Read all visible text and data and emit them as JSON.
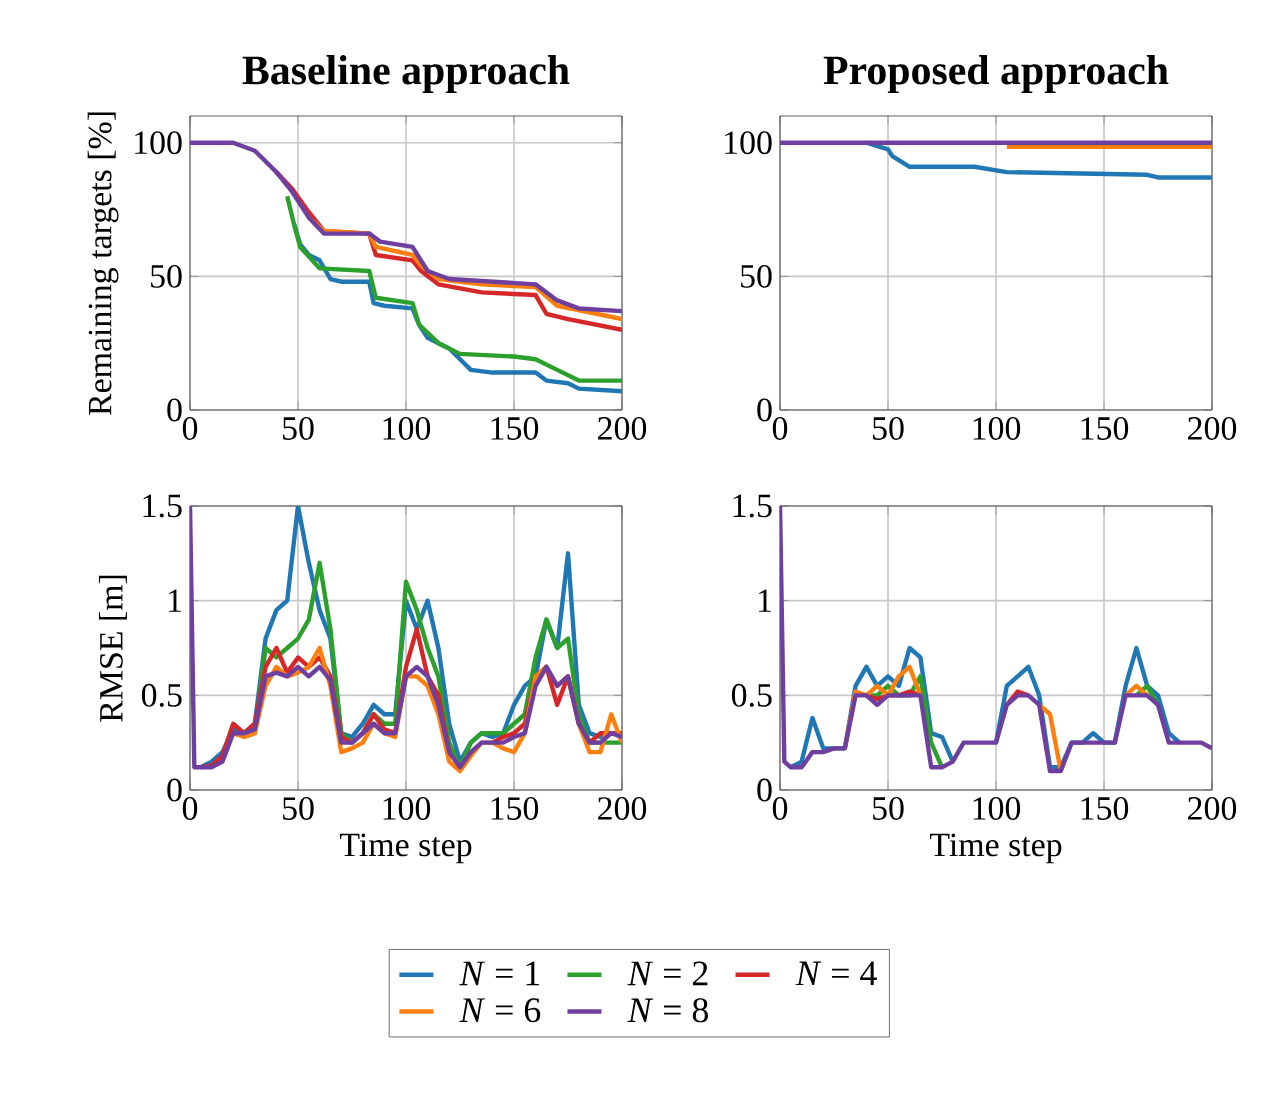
{
  "chart_data": [
    {
      "type": "line",
      "title": "Baseline approach",
      "ylabel": "Remaining targets [%]",
      "xlim": [
        0,
        200
      ],
      "ylim": [
        0,
        110
      ],
      "xticks": [
        0,
        50,
        100,
        150,
        200
      ],
      "yticks": [
        0,
        50,
        100
      ],
      "grid": true,
      "series": [
        {
          "color": "#1f77b4",
          "x": [
            48,
            51,
            55,
            60,
            65,
            70,
            83,
            85,
            90,
            103,
            106,
            110,
            115,
            120,
            125,
            130,
            140,
            160,
            165,
            175,
            180,
            200
          ],
          "values": [
            70,
            62,
            58,
            56,
            49,
            48,
            48,
            40,
            39,
            38,
            32,
            27,
            25,
            23,
            19,
            15,
            14,
            14,
            11,
            10,
            8,
            7
          ]
        },
        {
          "color": "#2ca02c",
          "x": [
            45,
            48,
            51,
            60,
            83,
            86,
            103,
            106,
            115,
            125,
            150,
            160,
            170,
            180,
            200
          ],
          "values": [
            80,
            70,
            61,
            53,
            52,
            42,
            40,
            32,
            25,
            21,
            20,
            19,
            15,
            11,
            11
          ]
        },
        {
          "color": "#d62728",
          "x": [
            40,
            47,
            55,
            62,
            83,
            86,
            103,
            107,
            115,
            135,
            160,
            165,
            175,
            200
          ],
          "values": [
            89,
            83,
            74,
            67,
            66,
            58,
            56,
            52,
            47,
            44,
            43,
            36,
            34,
            30
          ]
        },
        {
          "color": "#ff7f0e",
          "x": [
            55,
            62,
            83,
            86,
            103,
            107,
            115,
            135,
            160,
            170,
            200
          ],
          "values": [
            72,
            67,
            66,
            61,
            58,
            54,
            49,
            47,
            46,
            39,
            34
          ]
        },
        {
          "color": "#6f3f9f",
          "x": [
            0,
            20,
            30,
            40,
            47,
            55,
            62,
            83,
            88,
            103,
            110,
            120,
            160,
            170,
            180,
            200
          ],
          "values": [
            100,
            100,
            97,
            89,
            82,
            72,
            66,
            66,
            63,
            61,
            52,
            49,
            47,
            41,
            38,
            37
          ]
        }
      ]
    },
    {
      "type": "line",
      "title": "Proposed approach",
      "xlim": [
        0,
        200
      ],
      "ylim": [
        0,
        110
      ],
      "xticks": [
        0,
        50,
        100,
        150,
        200
      ],
      "yticks": [
        0,
        50,
        100
      ],
      "grid": true,
      "series": [
        {
          "color": "#1f77b4",
          "x": [
            40,
            50,
            52,
            60,
            90,
            105,
            170,
            175,
            200
          ],
          "values": [
            100,
            97.5,
            95,
            91,
            91,
            89,
            88,
            87,
            87
          ]
        },
        {
          "color": "#ff7f0e",
          "x": [
            105,
            200
          ],
          "values": [
            98.5,
            98.5
          ]
        },
        {
          "color": "#6f3f9f",
          "x": [
            0,
            200
          ],
          "values": [
            100,
            100
          ]
        }
      ]
    },
    {
      "type": "line",
      "ylabel": "RMSE [m]",
      "xlabel": "Time step",
      "xlim": [
        0,
        200
      ],
      "ylim": [
        0,
        1.5
      ],
      "xticks": [
        0,
        50,
        100,
        150,
        200
      ],
      "yticks": [
        0,
        0.5,
        1,
        1.5
      ],
      "grid": true,
      "legend": "bottom",
      "x": [
        0,
        2,
        5,
        10,
        15,
        20,
        25,
        30,
        35,
        40,
        45,
        50,
        55,
        60,
        65,
        70,
        75,
        80,
        85,
        90,
        95,
        100,
        105,
        110,
        115,
        120,
        125,
        130,
        135,
        140,
        145,
        150,
        155,
        160,
        165,
        170,
        175,
        180,
        185,
        190,
        195,
        200
      ],
      "series": [
        {
          "name": "*N* = 1",
          "color": "#1f77b4",
          "values": [
            null,
            null,
            0.12,
            0.15,
            0.2,
            0.32,
            0.3,
            0.35,
            0.8,
            0.95,
            1.0,
            1.5,
            1.2,
            0.95,
            0.8,
            0.3,
            0.28,
            0.35,
            0.45,
            0.4,
            0.4,
            1.0,
            0.85,
            1.0,
            0.75,
            0.35,
            0.15,
            0.25,
            0.3,
            0.28,
            0.3,
            0.45,
            0.55,
            0.6,
            0.9,
            0.75,
            1.25,
            0.45,
            0.3,
            0.28,
            0.3,
            0.3
          ]
        },
        {
          "name": "*N* = 2",
          "color": "#2ca02c",
          "values": [
            null,
            null,
            null,
            null,
            null,
            null,
            0.28,
            0.3,
            0.75,
            0.7,
            0.75,
            0.8,
            0.9,
            1.2,
            0.85,
            0.3,
            0.25,
            0.3,
            0.4,
            0.35,
            0.35,
            1.1,
            0.95,
            0.75,
            0.6,
            0.25,
            0.12,
            0.25,
            0.3,
            0.3,
            0.3,
            0.35,
            0.4,
            0.7,
            0.9,
            0.75,
            0.8,
            0.4,
            0.25,
            0.25,
            0.25,
            0.25
          ]
        },
        {
          "name": "*N* = 4",
          "color": "#d62728",
          "values": [
            null,
            null,
            0.12,
            0.13,
            0.18,
            0.35,
            0.3,
            0.35,
            0.65,
            0.75,
            0.62,
            0.7,
            0.65,
            0.7,
            0.6,
            0.28,
            0.25,
            0.3,
            0.4,
            0.32,
            0.3,
            0.65,
            0.85,
            0.6,
            0.5,
            0.2,
            null,
            null,
            null,
            0.25,
            0.28,
            0.3,
            0.35,
            0.6,
            0.65,
            0.45,
            0.6,
            0.35,
            0.25,
            0.3,
            0.3,
            0.3
          ]
        },
        {
          "name": "*N* = 6",
          "color": "#ff7f0e",
          "values": [
            null,
            null,
            null,
            null,
            null,
            0.3,
            0.28,
            0.3,
            0.55,
            0.65,
            0.6,
            0.62,
            0.65,
            0.75,
            0.55,
            0.2,
            0.22,
            0.25,
            0.35,
            0.3,
            0.28,
            0.6,
            0.6,
            0.55,
            0.4,
            0.15,
            0.1,
            0.18,
            0.25,
            0.25,
            0.22,
            0.2,
            0.3,
            0.6,
            0.65,
            0.55,
            0.6,
            0.35,
            0.2,
            0.2,
            0.4,
            0.25
          ]
        },
        {
          "name": "*N* = 8",
          "color": "#6f3f9f",
          "values": [
            1.5,
            0.12,
            0.12,
            0.12,
            0.15,
            0.3,
            0.3,
            0.32,
            0.6,
            0.62,
            0.6,
            0.65,
            0.6,
            0.65,
            0.58,
            0.25,
            0.25,
            0.3,
            0.35,
            0.3,
            0.3,
            0.6,
            0.65,
            0.6,
            0.45,
            0.2,
            0.12,
            0.2,
            0.25,
            0.25,
            0.25,
            0.28,
            0.3,
            0.55,
            0.65,
            0.55,
            0.6,
            0.35,
            0.25,
            0.25,
            0.3,
            0.28
          ]
        }
      ]
    },
    {
      "type": "line",
      "xlabel": "Time step",
      "xlim": [
        0,
        200
      ],
      "ylim": [
        0,
        1.5
      ],
      "xticks": [
        0,
        50,
        100,
        150,
        200
      ],
      "yticks": [
        0,
        0.5,
        1,
        1.5
      ],
      "grid": true,
      "x": [
        0,
        2,
        5,
        10,
        15,
        20,
        25,
        30,
        35,
        40,
        45,
        50,
        55,
        60,
        65,
        70,
        75,
        80,
        85,
        90,
        95,
        100,
        105,
        110,
        115,
        120,
        125,
        130,
        135,
        140,
        145,
        150,
        155,
        160,
        165,
        170,
        175,
        180,
        185,
        190,
        195,
        200
      ],
      "series": [
        {
          "color": "#1f77b4",
          "values": [
            null,
            null,
            0.12,
            0.15,
            0.38,
            0.22,
            0.22,
            0.22,
            0.55,
            0.65,
            0.55,
            0.6,
            0.55,
            0.75,
            0.7,
            0.3,
            0.28,
            0.15,
            null,
            null,
            null,
            0.25,
            0.55,
            0.6,
            0.65,
            0.5,
            0.12,
            0.12,
            0.25,
            0.25,
            0.3,
            0.25,
            0.25,
            0.55,
            0.75,
            0.55,
            0.5,
            0.3,
            0.25,
            null,
            null,
            null
          ]
        },
        {
          "color": "#2ca02c",
          "values": [
            null,
            null,
            null,
            null,
            null,
            null,
            null,
            null,
            null,
            0.5,
            0.5,
            0.55,
            0.5,
            0.5,
            0.6,
            0.25,
            0.12,
            null,
            null,
            null,
            null,
            null,
            null,
            null,
            null,
            null,
            null,
            null,
            null,
            null,
            null,
            null,
            null,
            null,
            0.5,
            0.55,
            0.45,
            null,
            null,
            null,
            null,
            null
          ]
        },
        {
          "color": "#d62728",
          "values": [
            null,
            null,
            null,
            null,
            null,
            null,
            null,
            null,
            null,
            0.5,
            0.48,
            0.5,
            0.5,
            0.52,
            0.5,
            null,
            null,
            null,
            null,
            null,
            null,
            null,
            0.45,
            0.52,
            0.5,
            null,
            null,
            null,
            null,
            null,
            null,
            null,
            null,
            null,
            null,
            null,
            null,
            null,
            null,
            null,
            null,
            null
          ]
        },
        {
          "color": "#ff7f0e",
          "values": [
            null,
            null,
            null,
            null,
            null,
            null,
            null,
            0.22,
            0.52,
            0.5,
            0.55,
            0.5,
            0.6,
            0.65,
            0.5,
            null,
            null,
            null,
            null,
            null,
            null,
            null,
            null,
            null,
            null,
            0.45,
            0.4,
            0.1,
            null,
            null,
            null,
            null,
            null,
            0.5,
            0.55,
            0.5,
            null,
            null,
            null,
            null,
            null,
            null
          ]
        },
        {
          "color": "#6f3f9f",
          "values": [
            1.5,
            0.15,
            0.12,
            0.12,
            0.2,
            0.2,
            0.22,
            0.22,
            0.5,
            0.5,
            0.45,
            0.5,
            0.5,
            0.5,
            0.5,
            0.12,
            0.12,
            0.15,
            0.25,
            0.25,
            0.25,
            0.25,
            0.45,
            0.5,
            0.5,
            0.45,
            0.1,
            0.1,
            0.25,
            0.25,
            0.25,
            0.25,
            0.25,
            0.5,
            0.5,
            0.5,
            0.45,
            0.25,
            0.25,
            0.25,
            0.25,
            0.22
          ]
        }
      ]
    }
  ]
}
